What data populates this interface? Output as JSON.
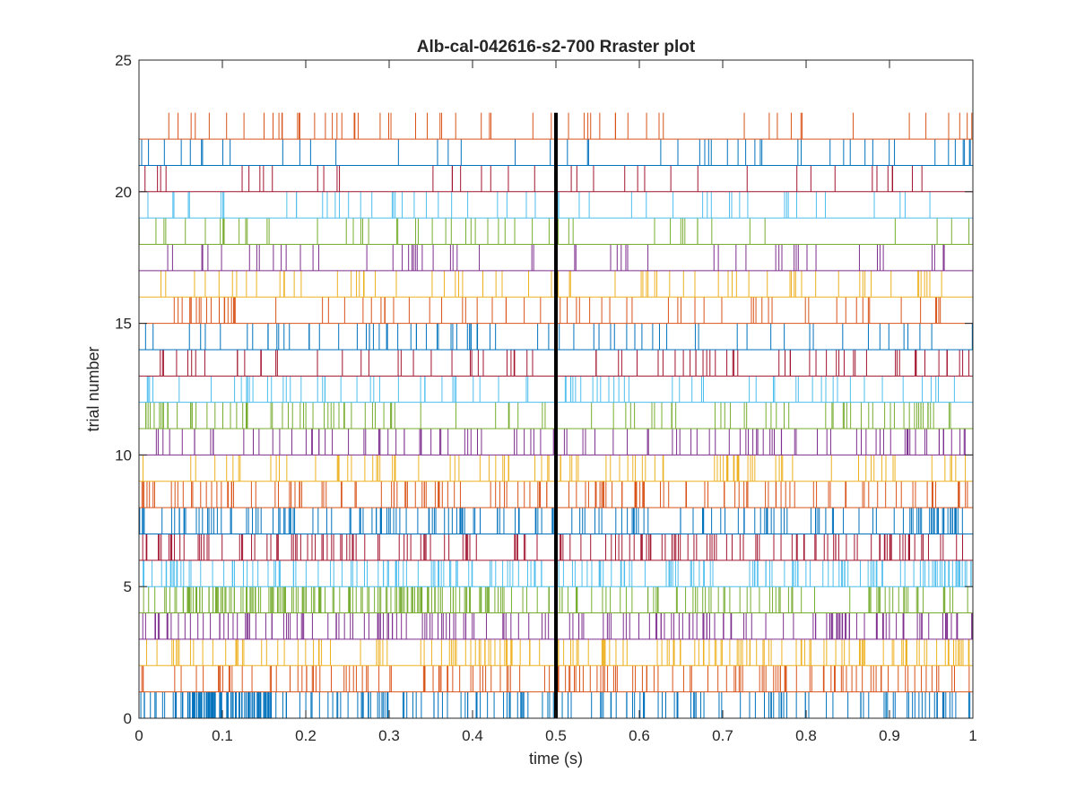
{
  "chart_data": {
    "type": "scatter",
    "subtype": "raster",
    "title": "Alb-cal-042616-s2-700 Rraster plot",
    "xlabel": "time (s)",
    "ylabel": "trial number",
    "xlim": [
      0,
      1
    ],
    "ylim": [
      0,
      25
    ],
    "xticks": [
      0,
      0.1,
      0.2,
      0.3,
      0.4,
      0.5,
      0.6,
      0.7,
      0.8,
      0.9,
      1
    ],
    "xtick_labels": [
      "0",
      "0.1",
      "0.2",
      "0.3",
      "0.4",
      "0.5",
      "0.6",
      "0.7",
      "0.8",
      "0.9",
      "1"
    ],
    "yticks": [
      0,
      5,
      10,
      15,
      20,
      25
    ],
    "ytick_labels": [
      "0",
      "5",
      "10",
      "15",
      "20",
      "25"
    ],
    "grid": false,
    "box": true,
    "colors": [
      "#0072BD",
      "#D95319",
      "#EDB120",
      "#7E2F8E",
      "#77AC30",
      "#4DBEEE",
      "#A2142F"
    ],
    "reference_line": {
      "x": 0.5,
      "y_range": [
        0,
        23
      ],
      "color": "#000000"
    },
    "trials": [
      {
        "trial": 1,
        "spike_count": 260,
        "dense_windows": [
          [
            0.05,
            0.16,
            6
          ]
        ]
      },
      {
        "trial": 2,
        "spike_count": 150,
        "dense_windows": []
      },
      {
        "trial": 3,
        "spike_count": 165,
        "dense_windows": [
          [
            0.3,
            0.38,
            1
          ]
        ]
      },
      {
        "trial": 4,
        "spike_count": 185,
        "dense_windows": [
          [
            0.8,
            0.9,
            1.5
          ]
        ]
      },
      {
        "trial": 5,
        "spike_count": 250,
        "dense_windows": [
          [
            0.05,
            0.42,
            3
          ]
        ]
      },
      {
        "trial": 6,
        "spike_count": 190,
        "dense_windows": [
          [
            0.94,
            1.0,
            3
          ]
        ]
      },
      {
        "trial": 7,
        "spike_count": 165,
        "dense_windows": []
      },
      {
        "trial": 8,
        "spike_count": 185,
        "dense_windows": [
          [
            0.95,
            0.98,
            4
          ]
        ]
      },
      {
        "trial": 9,
        "spike_count": 145,
        "dense_windows": []
      },
      {
        "trial": 10,
        "spike_count": 95,
        "dense_windows": [
          [
            0.69,
            0.74,
            3
          ]
        ]
      },
      {
        "trial": 11,
        "spike_count": 110,
        "dense_windows": []
      },
      {
        "trial": 12,
        "spike_count": 110,
        "dense_windows": []
      },
      {
        "trial": 13,
        "spike_count": 80,
        "dense_windows": [
          [
            0.5,
            0.55,
            3
          ]
        ]
      },
      {
        "trial": 14,
        "spike_count": 80,
        "dense_windows": []
      },
      {
        "trial": 15,
        "spike_count": 75,
        "dense_windows": [
          [
            0.27,
            0.4,
            2
          ]
        ]
      },
      {
        "trial": 16,
        "spike_count": 75,
        "dense_windows": [
          [
            0.04,
            0.12,
            3
          ]
        ]
      },
      {
        "trial": 17,
        "spike_count": 70,
        "dense_windows": [
          [
            0.35,
            0.43,
            2
          ]
        ]
      },
      {
        "trial": 18,
        "spike_count": 60,
        "dense_windows": [
          [
            0.3,
            0.35,
            2
          ]
        ]
      },
      {
        "trial": 19,
        "spike_count": 55,
        "dense_windows": [
          [
            0.53,
            0.55,
            4
          ]
        ]
      },
      {
        "trial": 20,
        "spike_count": 55,
        "dense_windows": [
          [
            0.72,
            0.8,
            2
          ]
        ]
      },
      {
        "trial": 21,
        "spike_count": 40,
        "dense_windows": []
      },
      {
        "trial": 22,
        "spike_count": 50,
        "dense_windows": [
          [
            0.98,
            1.0,
            4
          ]
        ]
      },
      {
        "trial": 23,
        "spike_count": 60,
        "dense_windows": [
          [
            0.95,
            1.0,
            3
          ]
        ]
      }
    ]
  }
}
